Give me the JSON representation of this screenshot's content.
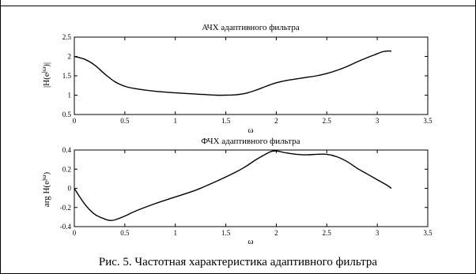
{
  "caption": "Рис. 5. Частотная характеристика адаптивного фильтра",
  "chart_data": [
    {
      "type": "line",
      "title": "АЧХ адаптивного фильтра",
      "xlabel": "ω",
      "ylabel": "|H(e^{jω})|",
      "xlim": [
        0,
        3.5
      ],
      "ylim": [
        0.5,
        2.5
      ],
      "xticks": [
        "0",
        "0.5",
        "1",
        "1.5",
        "2",
        "2.5",
        "3",
        "3.5"
      ],
      "yticks": [
        "0.5",
        "1",
        "1.5",
        "2",
        "2.5"
      ],
      "grid": false,
      "series": [
        {
          "x": [
            0,
            0.1,
            0.2,
            0.3,
            0.4,
            0.5,
            0.6,
            0.8,
            1.0,
            1.2,
            1.4,
            1.5,
            1.6,
            1.7,
            1.8,
            1.9,
            2.0,
            2.1,
            2.2,
            2.3,
            2.4,
            2.5,
            2.6,
            2.7,
            2.8,
            2.9,
            3.0,
            3.05,
            3.1,
            3.14
          ],
          "y": [
            2.0,
            1.93,
            1.78,
            1.55,
            1.35,
            1.23,
            1.17,
            1.1,
            1.06,
            1.03,
            1.0,
            1.0,
            1.01,
            1.05,
            1.13,
            1.23,
            1.32,
            1.38,
            1.42,
            1.46,
            1.5,
            1.56,
            1.64,
            1.74,
            1.86,
            1.97,
            2.07,
            2.12,
            2.14,
            2.14
          ]
        }
      ]
    },
    {
      "type": "line",
      "title": "ФЧХ адаптивного фильтра",
      "xlabel": "ω",
      "ylabel": "arg H(e^{jω})",
      "xlim": [
        0,
        3.5
      ],
      "ylim": [
        -0.4,
        0.4
      ],
      "xticks": [
        "0",
        "0.5",
        "1",
        "1.5",
        "2",
        "2.5",
        "3",
        "3.5"
      ],
      "yticks": [
        "0.4",
        "0.2",
        "0",
        "-0.2",
        "-0.4"
      ],
      "grid": false,
      "series": [
        {
          "x": [
            0,
            0.1,
            0.2,
            0.3,
            0.35,
            0.4,
            0.5,
            0.6,
            0.8,
            1.0,
            1.2,
            1.4,
            1.6,
            1.7,
            1.8,
            1.9,
            1.95,
            2.0,
            2.1,
            2.2,
            2.3,
            2.4,
            2.5,
            2.6,
            2.7,
            2.8,
            2.9,
            3.0,
            3.1,
            3.14
          ],
          "y": [
            0.0,
            -0.16,
            -0.27,
            -0.32,
            -0.335,
            -0.33,
            -0.29,
            -0.24,
            -0.16,
            -0.09,
            -0.02,
            0.07,
            0.17,
            0.23,
            0.3,
            0.36,
            0.385,
            0.39,
            0.37,
            0.355,
            0.35,
            0.355,
            0.355,
            0.33,
            0.28,
            0.21,
            0.15,
            0.09,
            0.03,
            0.0
          ]
        }
      ]
    }
  ]
}
